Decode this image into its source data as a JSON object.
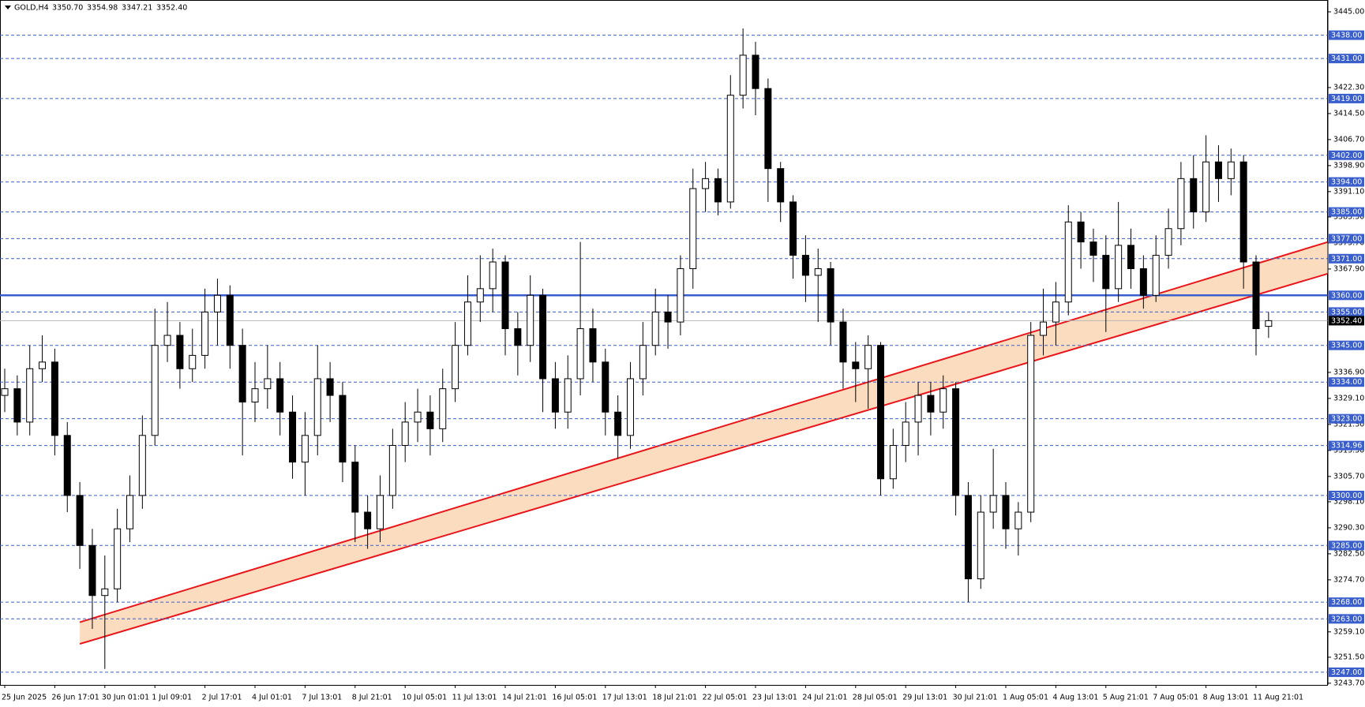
{
  "chart_data": {
    "type": "candlestick",
    "title": "GOLD,H4",
    "header_labels": [
      "3350.70",
      "3354.98",
      "3347.21",
      "3352.40"
    ],
    "categories": [
      "25 Jun 2025",
      null,
      null,
      null,
      "26 Jun 17:01",
      null,
      null,
      null,
      "30 Jun 01:01",
      null,
      null,
      null,
      "1 Jul 09:01",
      null,
      null,
      null,
      "2 Jul 17:01",
      null,
      null,
      null,
      "4 Jul 01:01",
      null,
      null,
      null,
      "7 Jul 13:01",
      null,
      null,
      null,
      "8 Jul 21:01",
      null,
      null,
      null,
      "10 Jul 05:01",
      null,
      null,
      null,
      "11 Jul 13:01",
      null,
      null,
      null,
      "14 Jul 21:01",
      null,
      null,
      null,
      "16 Jul 05:01",
      null,
      null,
      null,
      "17 Jul 13:01",
      null,
      null,
      null,
      "18 Jul 21:01",
      null,
      null,
      null,
      "22 Jul 05:01",
      null,
      null,
      null,
      "23 Jul 13:01",
      null,
      null,
      null,
      "24 Jul 21:01",
      null,
      null,
      null,
      "28 Jul 05:01",
      null,
      null,
      null,
      "29 Jul 13:01",
      null,
      null,
      null,
      "30 Jul 21:01",
      null,
      null,
      null,
      "1 Aug 05:01",
      null,
      null,
      null,
      "4 Aug 13:01",
      null,
      null,
      null,
      "5 Aug 21:01",
      null,
      null,
      null,
      "7 Aug 05:01",
      null,
      null,
      null,
      "8 Aug 13:01",
      null,
      null,
      null,
      "11 Aug 21:01",
      null
    ],
    "open": [
      3330,
      3332,
      3322,
      3338,
      3340,
      3318,
      3300,
      3285,
      3270,
      3272,
      3290,
      3300,
      3318,
      3345,
      3348,
      3338,
      3342,
      3355,
      3360,
      3345,
      3328,
      3332,
      3335,
      3325,
      3310,
      3318,
      3335,
      3330,
      3310,
      3295,
      3290,
      3300,
      3315,
      3322,
      3325,
      3320,
      3332,
      3345,
      3358,
      3362,
      3370,
      3350,
      3345,
      3360,
      3335,
      3325,
      3335,
      3350,
      3340,
      3325,
      3318,
      3335,
      3345,
      3355,
      3352,
      3368,
      3392,
      3395,
      3388,
      3420,
      3432,
      3422,
      3398,
      3388,
      3372,
      3366,
      3368,
      3352,
      3340,
      3338,
      3345,
      3305,
      3315,
      3322,
      3330,
      3325,
      3332,
      3300,
      3275,
      3295,
      3300,
      3290,
      3295,
      3348,
      3352,
      3358,
      3382,
      3376,
      3372,
      3362,
      3375,
      3368,
      3360,
      3372,
      3380,
      3395,
      3385,
      3400,
      3395,
      3400,
      3370,
      3350.7
    ],
    "high": [
      3338,
      3336,
      3345,
      3348,
      3344,
      3322,
      3304,
      3290,
      3282,
      3296,
      3306,
      3324,
      3356,
      3358,
      3352,
      3350,
      3362,
      3365,
      3363,
      3350,
      3340,
      3345,
      3340,
      3330,
      3325,
      3345,
      3340,
      3334,
      3315,
      3300,
      3306,
      3320,
      3328,
      3332,
      3330,
      3338,
      3352,
      3366,
      3372,
      3374,
      3372,
      3355,
      3366,
      3362,
      3340,
      3342,
      3376,
      3356,
      3344,
      3330,
      3340,
      3352,
      3362,
      3360,
      3372,
      3398,
      3400,
      3398,
      3426,
      3440,
      3436,
      3425,
      3400,
      3390,
      3378,
      3374,
      3370,
      3356,
      3346,
      3348,
      3346,
      3320,
      3328,
      3334,
      3334,
      3336,
      3334,
      3304,
      3300,
      3314,
      3304,
      3298,
      3352,
      3362,
      3364,
      3387,
      3385,
      3380,
      3378,
      3388,
      3380,
      3372,
      3378,
      3386,
      3400,
      3402,
      3408,
      3405,
      3404,
      3402,
      3372,
      3354.98
    ],
    "low": [
      3325,
      3318,
      3318,
      3334,
      3312,
      3295,
      3278,
      3260,
      3248,
      3268,
      3286,
      3296,
      3315,
      3340,
      3332,
      3334,
      3338,
      3345,
      3338,
      3312,
      3322,
      3326,
      3318,
      3305,
      3300,
      3312,
      3322,
      3304,
      3286,
      3284,
      3286,
      3296,
      3310,
      3316,
      3312,
      3316,
      3328,
      3342,
      3352,
      3355,
      3342,
      3336,
      3340,
      3325,
      3320,
      3320,
      3330,
      3334,
      3318,
      3311,
      3314,
      3330,
      3342,
      3344,
      3348,
      3362,
      3385,
      3384,
      3386,
      3416,
      3414,
      3388,
      3382,
      3365,
      3358,
      3352,
      3345,
      3332,
      3328,
      3326,
      3300,
      3302,
      3310,
      3312,
      3318,
      3320,
      3294,
      3268,
      3272,
      3290,
      3284,
      3282,
      3292,
      3342,
      3345,
      3354,
      3368,
      3364,
      3349,
      3358,
      3362,
      3356,
      3358,
      3368,
      3375,
      3380,
      3382,
      3388,
      3390,
      3362,
      3342,
      3347.21
    ],
    "close": [
      3332,
      3322,
      3338,
      3340,
      3318,
      3300,
      3285,
      3270,
      3272,
      3290,
      3300,
      3318,
      3345,
      3348,
      3338,
      3342,
      3355,
      3360,
      3345,
      3328,
      3332,
      3335,
      3325,
      3310,
      3318,
      3335,
      3330,
      3310,
      3295,
      3290,
      3300,
      3315,
      3322,
      3325,
      3320,
      3332,
      3345,
      3358,
      3362,
      3370,
      3350,
      3345,
      3360,
      3335,
      3325,
      3335,
      3350,
      3340,
      3325,
      3318,
      3335,
      3345,
      3355,
      3352,
      3368,
      3392,
      3395,
      3388,
      3420,
      3432,
      3422,
      3398,
      3388,
      3372,
      3366,
      3368,
      3352,
      3340,
      3338,
      3345,
      3305,
      3315,
      3322,
      3330,
      3325,
      3332,
      3300,
      3275,
      3295,
      3300,
      3290,
      3295,
      3348,
      3352,
      3358,
      3382,
      3376,
      3372,
      3362,
      3375,
      3368,
      3360,
      3372,
      3380,
      3395,
      3385,
      3400,
      3395,
      3400,
      3370,
      3350,
      3352.4
    ],
    "up_color": "#ffffff",
    "down_color": "#000000",
    "ylim": [
      3243.2,
      3447.6
    ],
    "yticks": [
      {
        "value": 3445,
        "label": "3445.00"
      },
      {
        "value": 3422.3,
        "label": "3422.30"
      },
      {
        "value": 3414.5,
        "label": "3414.50"
      },
      {
        "value": 3406.7,
        "label": "3406.70"
      },
      {
        "value": 3398.9,
        "label": "3398.90"
      },
      {
        "value": 3391.1,
        "label": "3391.10"
      },
      {
        "value": 3383.5,
        "label": "3383.50"
      },
      {
        "value": 3375.7,
        "label": "3375.70"
      },
      {
        "value": 3367.9,
        "label": "3367.90"
      },
      {
        "value": 3336.9,
        "label": "3336.90"
      },
      {
        "value": 3329.1,
        "label": "3329.10"
      },
      {
        "value": 3321.3,
        "label": "3321.30"
      },
      {
        "value": 3313.5,
        "label": "3313.50"
      },
      {
        "value": 3305.7,
        "label": "3305.70"
      },
      {
        "value": 3298.1,
        "label": "3298.10"
      },
      {
        "value": 3290.3,
        "label": "3290.30"
      },
      {
        "value": 3282.5,
        "label": "3282.50"
      },
      {
        "value": 3274.7,
        "label": "3274.70"
      },
      {
        "value": 3259.1,
        "label": "3259.10"
      },
      {
        "value": 3251.5,
        "label": "3251.50"
      },
      {
        "value": 3243.7,
        "label": "3243.70"
      }
    ],
    "levels": [
      {
        "value": 3438,
        "label": "3438.00"
      },
      {
        "value": 3431,
        "label": "3431.00"
      },
      {
        "value": 3419,
        "label": "3419.00"
      },
      {
        "value": 3402,
        "label": "3402.00"
      },
      {
        "value": 3394,
        "label": "3394.00"
      },
      {
        "value": 3385,
        "label": "3385.00"
      },
      {
        "value": 3377,
        "label": "3377.00"
      },
      {
        "value": 3371,
        "label": "3371.00"
      },
      {
        "value": 3355,
        "label": "3355.00"
      },
      {
        "value": 3345,
        "label": "3345.00"
      },
      {
        "value": 3334,
        "label": "3334.00"
      },
      {
        "value": 3323,
        "label": "3323.00"
      },
      {
        "value": 3314.96,
        "label": "3314.96"
      },
      {
        "value": 3300,
        "label": "3300.00"
      },
      {
        "value": 3285,
        "label": "3285.00"
      },
      {
        "value": 3268,
        "label": "3268.00"
      },
      {
        "value": 3263,
        "label": "3263.00"
      },
      {
        "value": 3247,
        "label": "3247.00"
      }
    ],
    "level_color": "#3a5fcd",
    "key_level": {
      "value": 3360,
      "label": "3360.00"
    },
    "current": {
      "value": 3352.4,
      "label": "3352.40"
    },
    "channel": {
      "upper": [
        3262,
        3376
      ],
      "lower": [
        3255.5,
        3366.5
      ],
      "color": "#e8161b",
      "fill": "#fcdcbf"
    }
  }
}
